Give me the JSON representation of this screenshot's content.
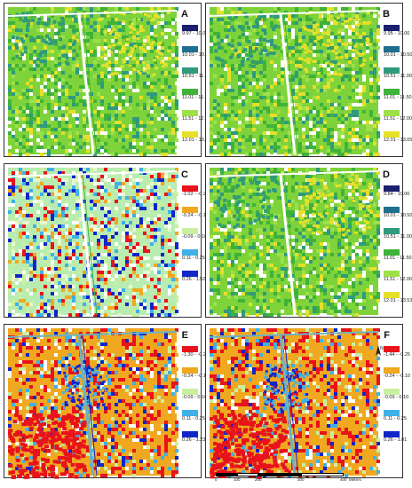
{
  "panels": [
    {
      "id": "a",
      "letter": "A",
      "map_type": "canopy-height",
      "legend": [
        {
          "color": "#1a1f6e",
          "label": "9.97 - 10.00"
        },
        {
          "color": "#1f6f8f",
          "label": "10.01 - 10.50"
        },
        {
          "color": "#2f9a7c",
          "label": "10.51 - 11.00"
        },
        {
          "color": "#3fb23a",
          "label": "11.01 - 11.50"
        },
        {
          "color": "#9ee04a",
          "label": "11.51 - 12.00"
        },
        {
          "color": "#e6e02a",
          "label": "12.01 - 13.78"
        }
      ]
    },
    {
      "id": "b",
      "letter": "B",
      "map_type": "canopy-height",
      "legend": [
        {
          "color": "#1a1f6e",
          "label": "9.95 - 10.00"
        },
        {
          "color": "#1f6f8f",
          "label": "10.01 - 10.50"
        },
        {
          "color": "#2f9a7c",
          "label": "10.51 - 11.00"
        },
        {
          "color": "#3fb23a",
          "label": "11.01 - 11.50"
        },
        {
          "color": "#9ee04a",
          "label": "11.51 - 12.00"
        },
        {
          "color": "#e6e02a",
          "label": "12.01 - 13.05"
        }
      ]
    },
    {
      "id": "c",
      "letter": "C",
      "map_type": "difference",
      "legend": [
        {
          "color": "#e8131b",
          "label": "-1.02 - -0.25"
        },
        {
          "color": "#f0a820",
          "label": "-0.24 - -0.10"
        },
        {
          "color": "#c8f0a0",
          "label": "-0.09 - 0.10"
        },
        {
          "color": "#40b0e8",
          "label": "0.11 - 0.25"
        },
        {
          "color": "#1026c8",
          "label": "0.26 - 1.52"
        }
      ]
    },
    {
      "id": "d",
      "letter": "D",
      "map_type": "canopy-height",
      "legend": [
        {
          "color": "#1a1f6e",
          "label": "9.84 - 10.00"
        },
        {
          "color": "#1f6f8f",
          "label": "10.01 - 10.50"
        },
        {
          "color": "#2f9a7c",
          "label": "10.51 - 11.00"
        },
        {
          "color": "#3fb23a",
          "label": "11.01 - 11.50"
        },
        {
          "color": "#9ee04a",
          "label": "11.51 - 12.00"
        },
        {
          "color": "#e6e02a",
          "label": "12.01 - 13.53"
        }
      ]
    },
    {
      "id": "e",
      "letter": "E",
      "map_type": "difference-hot",
      "legend": [
        {
          "color": "#e8131b",
          "label": "-1.30 - -0.25"
        },
        {
          "color": "#f0a820",
          "label": "-0.24 - -0.10"
        },
        {
          "color": "#c8f0a0",
          "label": "-0.09 - 0.10"
        },
        {
          "color": "#40b0e8",
          "label": "0.11 - 0.25"
        },
        {
          "color": "#1026c8",
          "label": "0.26 - 1.23"
        }
      ]
    },
    {
      "id": "f",
      "letter": "F",
      "map_type": "difference-hot",
      "north_arrow": true,
      "legend": [
        {
          "color": "#e8131b",
          "label": "-1.44 - -0.25"
        },
        {
          "color": "#f0a820",
          "label": "-0.24 - -0.10"
        },
        {
          "color": "#c8f0a0",
          "label": "-0.09 - 0.10"
        },
        {
          "color": "#40b0e8",
          "label": "0.11 - 0.25"
        },
        {
          "color": "#1026c8",
          "label": "0.26 - 1.01"
        }
      ]
    }
  ],
  "scale_bar": {
    "ticks": [
      "0",
      "100",
      "200",
      "300",
      "400"
    ],
    "unit": "Meters"
  },
  "north_symbol": "N"
}
